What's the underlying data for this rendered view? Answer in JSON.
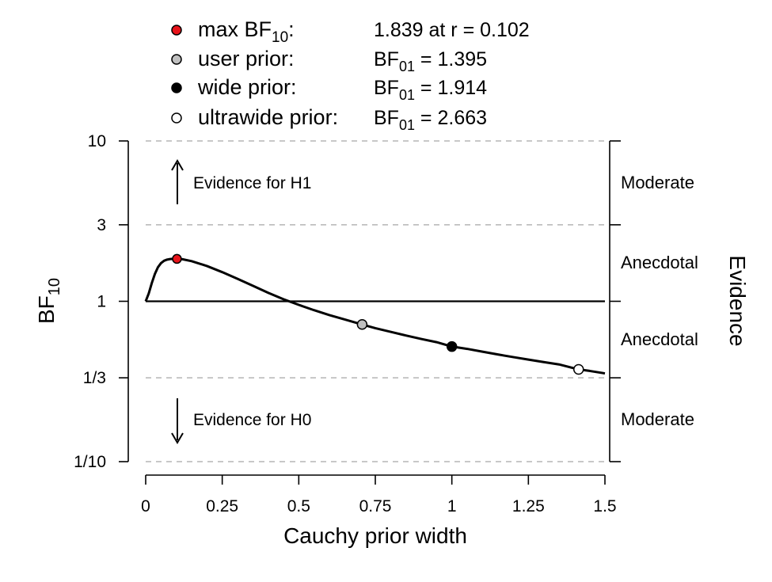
{
  "chart_data": {
    "type": "line",
    "title": "",
    "xlabel": "Cauchy prior width",
    "ylabel_main": "BF",
    "ylabel_sub": "10",
    "right_label": "Evidence",
    "x_ticks": [
      "0",
      "0.25",
      "0.5",
      "0.75",
      "1",
      "1.25",
      "1.5"
    ],
    "x_tick_values": [
      0,
      0.25,
      0.5,
      0.75,
      1,
      1.25,
      1.5
    ],
    "y_ticks": [
      "10",
      "3",
      "1",
      "1/3",
      "1/10"
    ],
    "y_tick_values": [
      10,
      3,
      1,
      0.3333,
      0.1
    ],
    "y_scale": "log",
    "xlim": [
      0,
      1.5
    ],
    "ylim": [
      0.1,
      10
    ],
    "evidence_bands": [
      "Moderate",
      "Anecdotal",
      "Anecdotal",
      "Moderate"
    ],
    "reference_line_y": 1,
    "dashed_gridlines_y": [
      10,
      3,
      0.3333,
      0.1
    ],
    "annotations": {
      "h1": "Evidence for H1",
      "h0": "Evidence for H0"
    },
    "curve": {
      "x": [
        0,
        0.01,
        0.02,
        0.03,
        0.04,
        0.05,
        0.06,
        0.07,
        0.08,
        0.09,
        0.1,
        0.12,
        0.15,
        0.2,
        0.25,
        0.3,
        0.35,
        0.4,
        0.45,
        0.5,
        0.55,
        0.6,
        0.65,
        0.707,
        0.75,
        0.8,
        0.85,
        0.9,
        0.95,
        1.0,
        1.05,
        1.1,
        1.15,
        1.2,
        1.25,
        1.3,
        1.35,
        1.414,
        1.45,
        1.5
      ],
      "y": [
        1.0,
        1.12,
        1.3,
        1.48,
        1.63,
        1.73,
        1.79,
        1.82,
        1.835,
        1.839,
        1.839,
        1.83,
        1.78,
        1.66,
        1.52,
        1.38,
        1.25,
        1.13,
        1.03,
        0.95,
        0.88,
        0.82,
        0.77,
        0.717,
        0.68,
        0.645,
        0.612,
        0.582,
        0.556,
        0.522,
        0.505,
        0.485,
        0.466,
        0.449,
        0.433,
        0.418,
        0.404,
        0.376,
        0.368,
        0.355
      ]
    },
    "points": [
      {
        "name": "max BF10",
        "x": 0.102,
        "y": 1.839,
        "color": "#e8141b"
      },
      {
        "name": "user prior",
        "x": 0.707,
        "y": 0.717,
        "color": "#c0c0c0"
      },
      {
        "name": "wide prior",
        "x": 1.0,
        "y": 0.522,
        "color": "#000000"
      },
      {
        "name": "ultrawide prior",
        "x": 1.414,
        "y": 0.376,
        "color": "#ffffff"
      }
    ],
    "legend": [
      {
        "label": "max BF",
        "label_sub": "10",
        "label_suffix": ":",
        "value": "1.839 at r = 0.102",
        "color": "#e8141b"
      },
      {
        "label": "user prior:",
        "value_main": "BF",
        "value_sub": "01",
        "value_rest": " = 1.395",
        "color": "#c0c0c0"
      },
      {
        "label": "wide prior:",
        "value_main": "BF",
        "value_sub": "01",
        "value_rest": " = 1.914",
        "color": "#000000"
      },
      {
        "label": "ultrawide prior:",
        "value_main": "BF",
        "value_sub": "01",
        "value_rest": " = 2.663",
        "color": "#ffffff"
      }
    ]
  }
}
